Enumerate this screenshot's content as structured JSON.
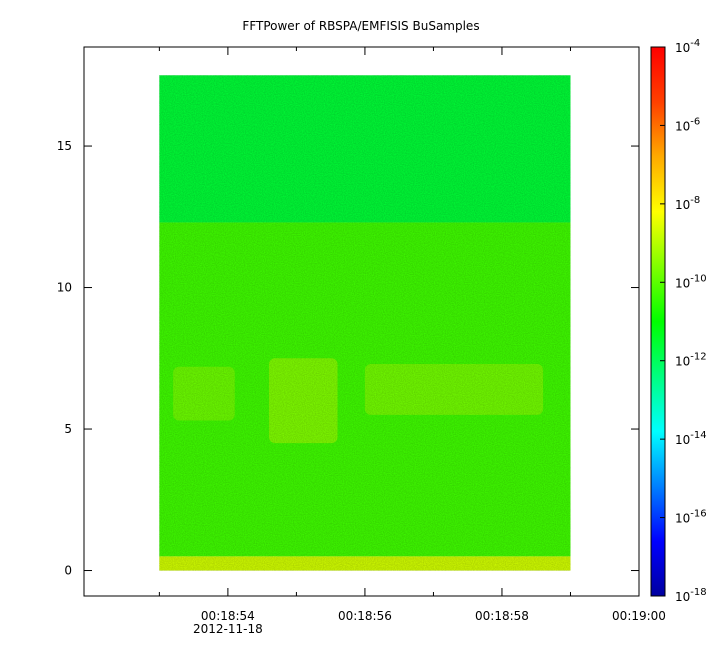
{
  "chart_data": {
    "type": "heatmap",
    "title": "FFTPower of RBSPA/EMFISIS  BuSamples",
    "xlabel": "",
    "ylabel": "",
    "x_ticks": [
      {
        "value": 54,
        "label": "00:18:54",
        "sublabel": "2012-11-18"
      },
      {
        "value": 56,
        "label": "00:18:56",
        "sublabel": ""
      },
      {
        "value": 58,
        "label": "00:18:58",
        "sublabel": ""
      },
      {
        "value": 60,
        "label": "00:19:00",
        "sublabel": ""
      }
    ],
    "x_minor_ticks": [
      53,
      55,
      57,
      59
    ],
    "xlim": [
      51.9,
      60.0
    ],
    "x_data_range": [
      53.0,
      59.0
    ],
    "y_ticks": [
      0,
      5,
      10,
      15
    ],
    "ylim": [
      -0.9,
      18.5
    ],
    "y_data_range": [
      0,
      17.5
    ],
    "colorbar": {
      "scale": "log",
      "range": [
        1e-18,
        0.0001
      ],
      "colors": [
        "#0000a0",
        "#0000ff",
        "#0080ff",
        "#00ffff",
        "#00ff80",
        "#00ff00",
        "#80ff00",
        "#ffff00",
        "#ffaa00",
        "#ff4000",
        "#ff0000"
      ],
      "ticks": [
        {
          "value": -4,
          "base": "10",
          "exp": "-4"
        },
        {
          "value": -6,
          "base": "10",
          "exp": "-6"
        },
        {
          "value": -8,
          "base": "10",
          "exp": "-8"
        },
        {
          "value": -10,
          "base": "10",
          "exp": "-10"
        },
        {
          "value": -12,
          "base": "10",
          "exp": "-12"
        },
        {
          "value": -14,
          "base": "10",
          "exp": "-14"
        },
        {
          "value": -16,
          "base": "10",
          "exp": "-16"
        },
        {
          "value": -18,
          "base": "10",
          "exp": "-18"
        }
      ]
    },
    "regions": [
      {
        "y": [
          12.3,
          17.5
        ],
        "log_power": -11.6
      },
      {
        "y": [
          0.5,
          12.3
        ],
        "log_power": -10.3
      },
      {
        "y": [
          0,
          0.5
        ],
        "log_power": -8.7
      }
    ],
    "features": [
      {
        "x": [
          53.2,
          54.1
        ],
        "y": [
          5.3,
          7.2
        ],
        "log_power": -9.6
      },
      {
        "x": [
          54.6,
          55.6
        ],
        "y": [
          4.5,
          7.5
        ],
        "log_power": -9.3
      },
      {
        "x": [
          56.0,
          58.6
        ],
        "y": [
          5.5,
          7.3
        ],
        "log_power": -9.5
      }
    ]
  }
}
